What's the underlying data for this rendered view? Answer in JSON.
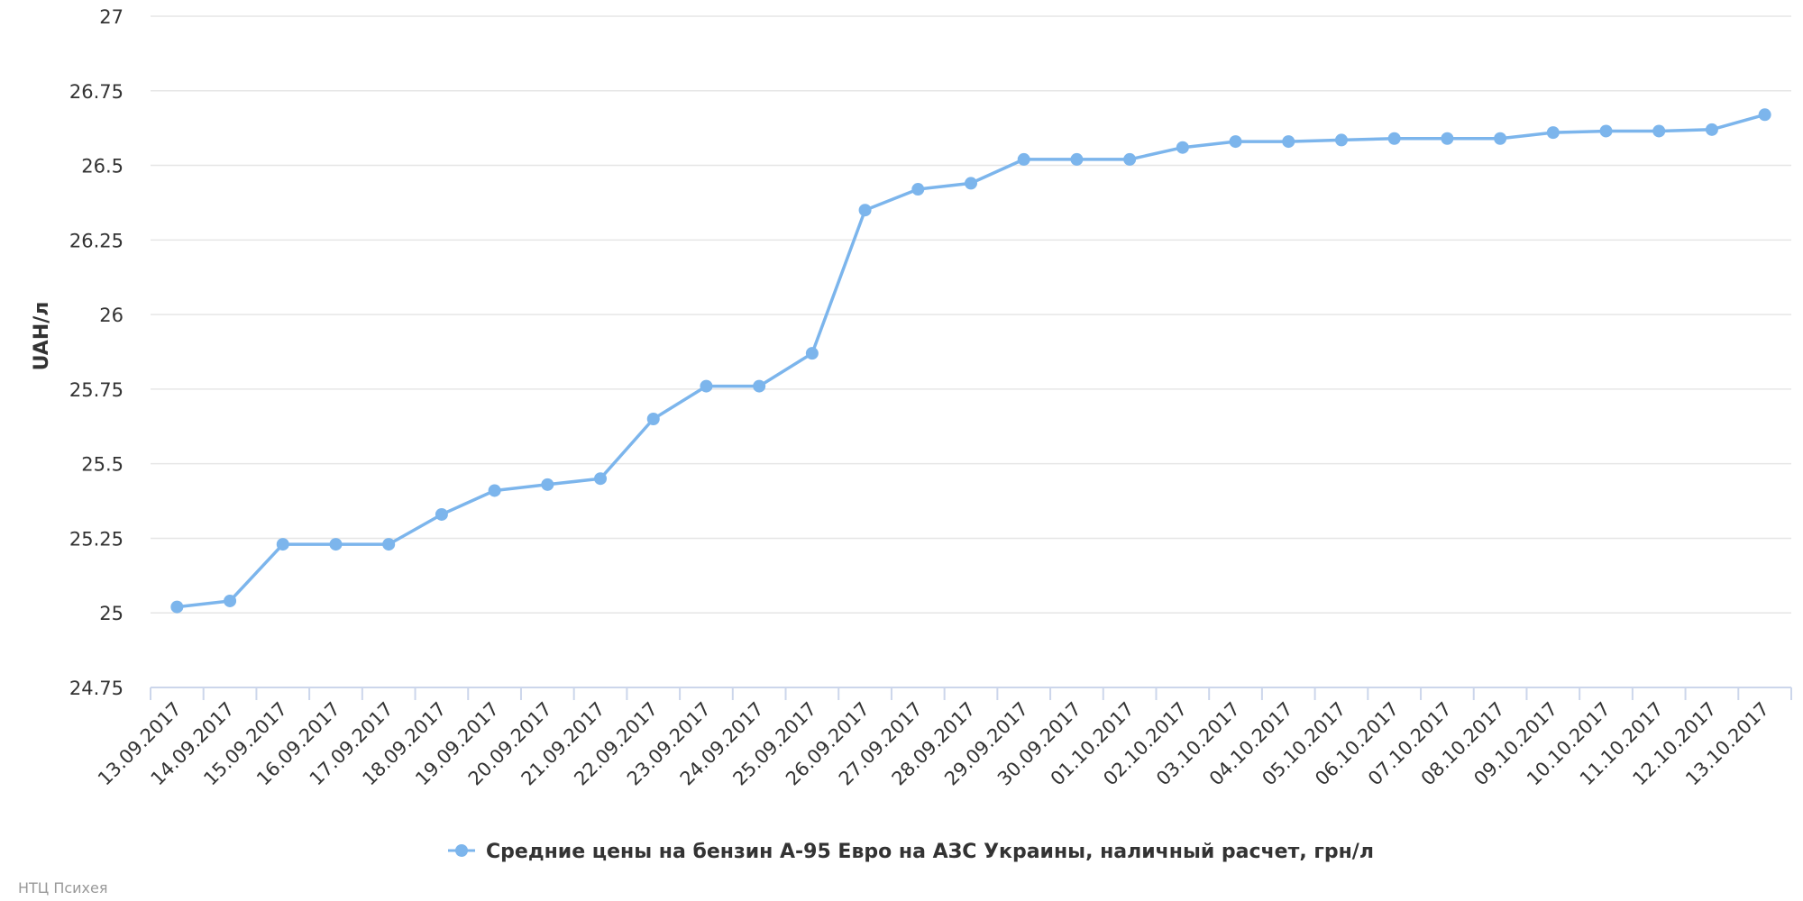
{
  "chart_data": {
    "type": "line",
    "title": "",
    "xlabel": "",
    "ylabel": "UAH/л",
    "ylim": [
      24.75,
      27
    ],
    "y_ticks": [
      "24.75",
      "25",
      "25.25",
      "25.5",
      "25.75",
      "26",
      "26.25",
      "26.5",
      "26.75",
      "27"
    ],
    "grid": true,
    "legend_position": "bottom-center",
    "categories": [
      "13.09.2017",
      "14.09.2017",
      "15.09.2017",
      "16.09.2017",
      "17.09.2017",
      "18.09.2017",
      "19.09.2017",
      "20.09.2017",
      "21.09.2017",
      "22.09.2017",
      "23.09.2017",
      "24.09.2017",
      "25.09.2017",
      "26.09.2017",
      "27.09.2017",
      "28.09.2017",
      "29.09.2017",
      "30.09.2017",
      "01.10.2017",
      "02.10.2017",
      "03.10.2017",
      "04.10.2017",
      "05.10.2017",
      "06.10.2017",
      "07.10.2017",
      "08.10.2017",
      "09.10.2017",
      "10.10.2017",
      "11.10.2017",
      "12.10.2017",
      "13.10.2017"
    ],
    "series": [
      {
        "name": "Средние цены на бензин А-95 Евро на АЗС Украины, наличный расчет, грн/л",
        "color": "#7cb5ec",
        "values": [
          25.02,
          25.04,
          25.23,
          25.23,
          25.23,
          25.33,
          25.41,
          25.43,
          25.45,
          25.65,
          25.76,
          25.76,
          25.87,
          26.35,
          26.42,
          26.44,
          26.52,
          26.52,
          26.52,
          26.56,
          26.58,
          26.58,
          26.585,
          26.59,
          26.59,
          26.59,
          26.61,
          26.615,
          26.615,
          26.62,
          26.67
        ]
      }
    ]
  },
  "credits": "НТЦ Психея",
  "colors": {
    "series": "#7cb5ec",
    "grid": "#e6e6e6",
    "axis": "#ccd6eb",
    "label": "#333333",
    "credits": "#999999"
  }
}
